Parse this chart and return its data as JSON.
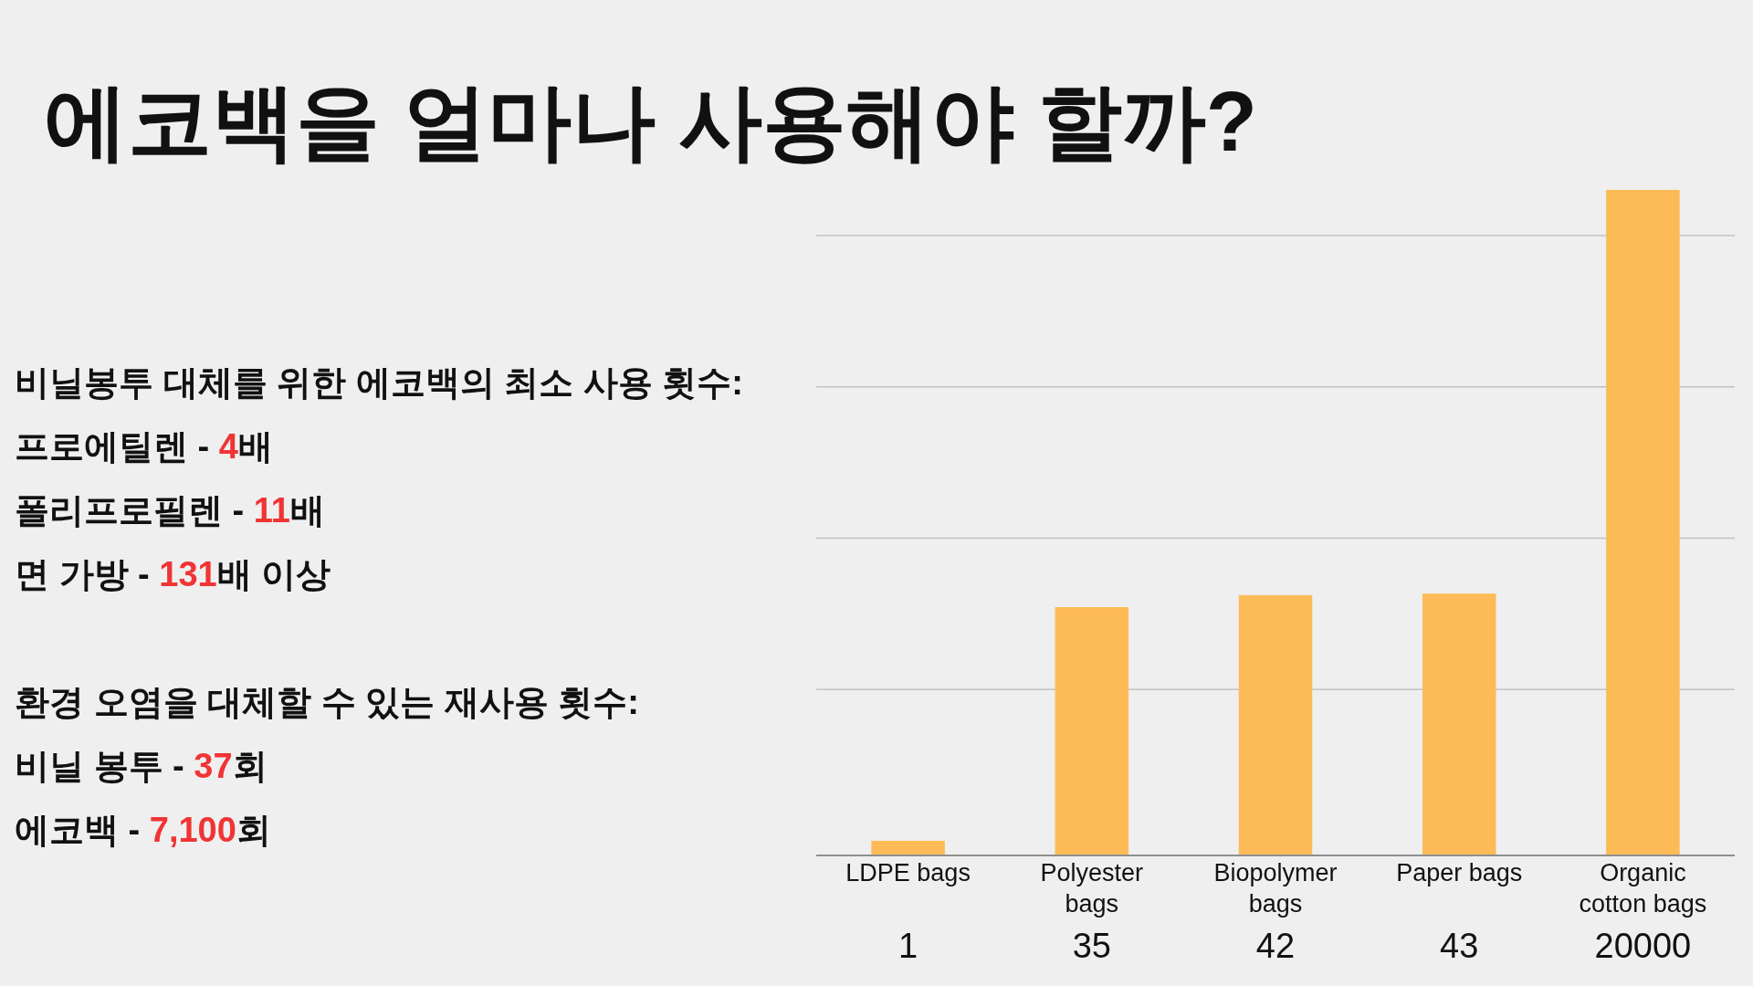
{
  "chart_data": {
    "type": "bar",
    "title": "에코백을 얼마나 사용해야 할까?",
    "annotations": [
      "비닐봉투 대체를 위한 에코백의 최소 사용 횟수:\n프로에틸렌 - 4배\n폴리프로필렌 - 11배\n면 가방 - 131배 이상",
      "환경 오염을 대체할 수 있는 재사용 횟수:\n비닐 봉투 - 37회\n에코백 - 7,100회"
    ],
    "categories": [
      "LDPE bags",
      "Polyester bags",
      "Biopolymer bags",
      "Paper bags",
      "Organic cotton bags"
    ],
    "values": [
      1,
      35,
      42,
      43,
      20000
    ],
    "color": "#fdbb57",
    "log": true,
    "ylim": [
      0.8,
      20000
    ],
    "yticks": [
      {
        "value": 10,
        "label": null
      },
      {
        "value": 100,
        "label": null
      },
      {
        "value": 1000,
        "label": null
      },
      {
        "value": 10000,
        "label": null
      }
    ],
    "grid": "y",
    "tick_labels": "x",
    "data_labels": true
  }
}
